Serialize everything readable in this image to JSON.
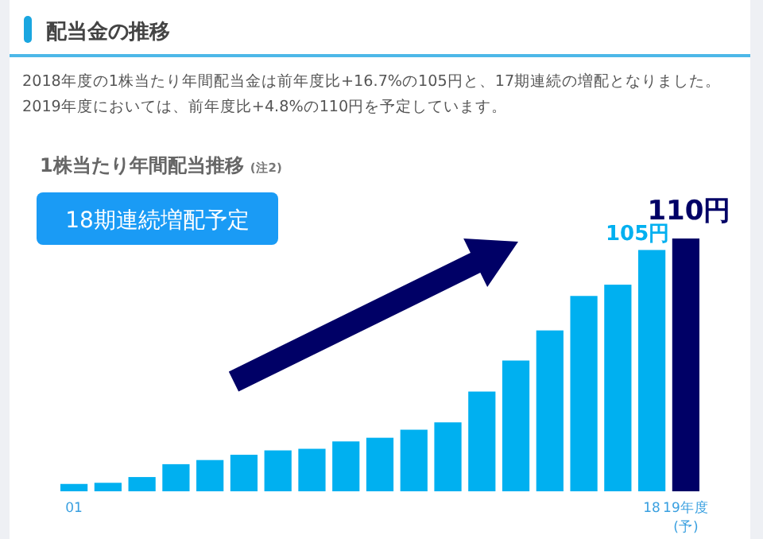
{
  "chart_data": {
    "type": "bar",
    "title": "配当金の推移",
    "subtitle": "2018年度の1株当たり年間配当金は前年度比+16.7%の105円と、17期連続の増配となりました。2019年度においては、前年度比+4.8%の110円を予定しています。",
    "annotations": [
      "1株当たり年間配当推移",
      "(注2)",
      "18期連続増配予定"
    ],
    "categories": [
      "01",
      null,
      null,
      null,
      null,
      null,
      null,
      null,
      null,
      null,
      null,
      null,
      null,
      null,
      null,
      null,
      null,
      "18",
      "19年度\n(予)"
    ],
    "values": [
      3.2,
      3.7,
      6.2,
      11.8,
      13.6,
      15.9,
      17.8,
      18.5,
      21.7,
      23.3,
      26.8,
      30.0,
      43.4,
      56.9,
      70.0,
      85.0,
      89.9,
      105,
      110
    ],
    "value_labels": [
      null,
      null,
      null,
      null,
      null,
      null,
      null,
      null,
      null,
      null,
      null,
      null,
      null,
      null,
      null,
      null,
      null,
      "105円",
      "110円"
    ],
    "colors": [
      "#00b0f0",
      "#00b0f0",
      "#00b0f0",
      "#00b0f0",
      "#00b0f0",
      "#00b0f0",
      "#00b0f0",
      "#00b0f0",
      "#00b0f0",
      "#00b0f0",
      "#00b0f0",
      "#00b0f0",
      "#00b0f0",
      "#00b0f0",
      "#00b0f0",
      "#00b0f0",
      "#00b0f0",
      "#00b0f0",
      "#000066"
    ]
  }
}
